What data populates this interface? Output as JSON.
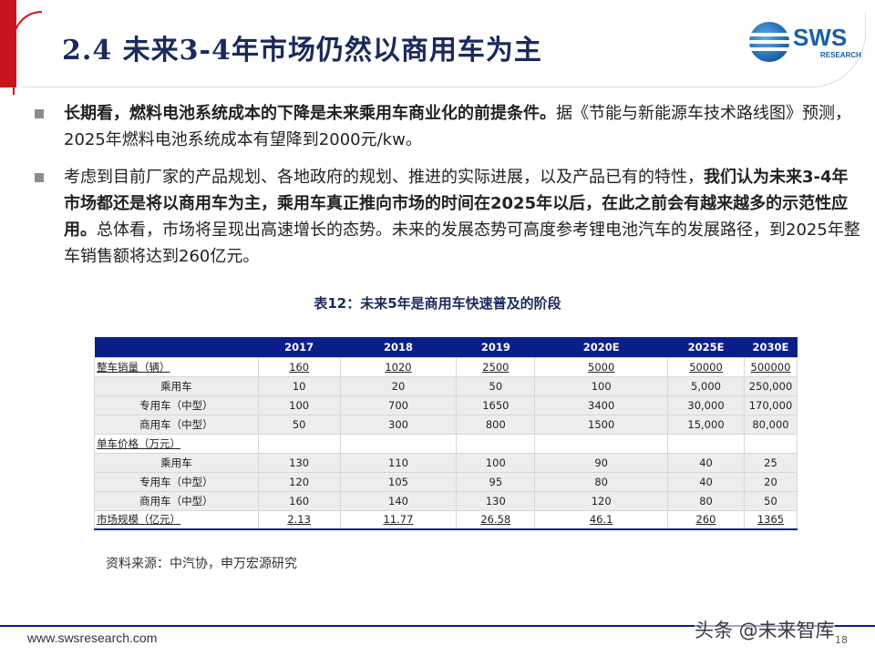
{
  "header": {
    "title": "2.4 未来3-4年市场仍然以商用车为主",
    "logo_text": "SWS",
    "logo_sub": "RESEARCH"
  },
  "bullets": [
    {
      "bold": "长期看，燃料电池系统成本的下降是未来乘用车商业化的前提条件。",
      "rest": "据《节能与新能源车技术路线图》预测，2025年燃料电池系统成本有望降到2000元/kw。"
    },
    {
      "lead": "考虑到目前厂家的产品规划、各地政府的规划、推进的实际进展，以及产品已有的特性，",
      "bold": "我们认为未来3-4年市场都还是将以商用车为主，乘用车真正推向市场的时间在2025年以后，在此之前会有越来越多的示范性应用。",
      "rest": "总体看，市场将呈现出高速增长的态势。未来的发展态势可高度参考锂电池汽车的发展路径，到2025年整车销售额将达到260亿元。"
    }
  ],
  "table": {
    "caption": "表12：未来5年是商用车快速普及的阶段",
    "columns": [
      "",
      "2017",
      "2018",
      "2019",
      "2020E",
      "2025E",
      "2030E"
    ],
    "rows": [
      {
        "type": "section",
        "cells": [
          "整车销量（辆）",
          "160",
          "1020",
          "2500",
          "5000",
          "50000",
          "500000"
        ]
      },
      {
        "type": "sub",
        "cells": [
          "乘用车",
          "10",
          "20",
          "50",
          "100",
          "5,000",
          "250,000"
        ]
      },
      {
        "type": "sub",
        "cells": [
          "专用车（中型）",
          "100",
          "700",
          "1650",
          "3400",
          "30,000",
          "170,000"
        ]
      },
      {
        "type": "sub",
        "cells": [
          "商用车（中型）",
          "50",
          "300",
          "800",
          "1500",
          "15,000",
          "80,000"
        ]
      },
      {
        "type": "section",
        "cells": [
          "单车价格（万元）",
          "",
          "",
          "",
          "",
          "",
          ""
        ]
      },
      {
        "type": "sub",
        "cells": [
          "乘用车",
          "130",
          "110",
          "100",
          "90",
          "40",
          "25"
        ]
      },
      {
        "type": "sub",
        "cells": [
          "专用车（中型）",
          "120",
          "105",
          "95",
          "80",
          "40",
          "20"
        ]
      },
      {
        "type": "sub",
        "cells": [
          "商用车（中型）",
          "160",
          "140",
          "130",
          "120",
          "80",
          "50"
        ]
      },
      {
        "type": "section",
        "cells": [
          "市场规模（亿元）",
          "2.13",
          "11.77",
          "26.58",
          "46.1",
          "260",
          "1365"
        ]
      }
    ]
  },
  "source": "资料来源：中汽协，申万宏源研究",
  "footer": {
    "url": "www.swsresearch.com",
    "page": "18",
    "watermark": "头条 @未来智库"
  },
  "colors": {
    "title": "#1a2a5c",
    "accent_red": "#c8141e",
    "table_header": "#0b1f8a",
    "logo_blue": "#1a5fa8"
  }
}
